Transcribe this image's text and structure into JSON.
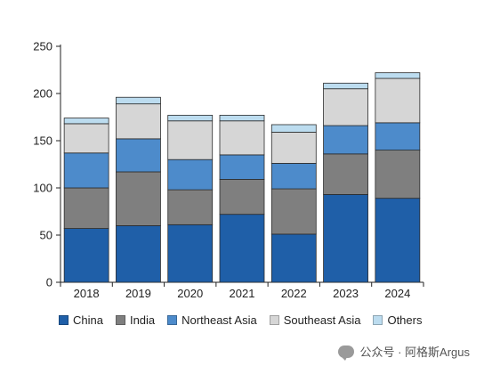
{
  "chart_data": {
    "type": "bar",
    "stacked": true,
    "categories": [
      "2018",
      "2019",
      "2020",
      "2021",
      "2022",
      "2023",
      "2024"
    ],
    "series": [
      {
        "name": "China",
        "color": "#1f5fa8",
        "values": [
          57,
          60,
          61,
          72,
          51,
          93,
          89
        ]
      },
      {
        "name": "India",
        "color": "#7f7f7f",
        "values": [
          43,
          57,
          37,
          37,
          48,
          43,
          51
        ]
      },
      {
        "name": "Northeast Asia",
        "color": "#4d8bcb",
        "values": [
          37,
          35,
          32,
          26,
          27,
          30,
          29
        ]
      },
      {
        "name": "Southeast Asia",
        "color": "#d6d6d6",
        "values": [
          31,
          37,
          41,
          36,
          33,
          39,
          47
        ]
      },
      {
        "name": "Others",
        "color": "#bcdcef",
        "values": [
          6,
          7,
          6,
          6,
          8,
          6,
          6
        ]
      }
    ],
    "ylim": [
      0,
      250
    ],
    "yticks": [
      0,
      50,
      100,
      150,
      200,
      250
    ],
    "grid": false,
    "legend_position": "bottom"
  },
  "watermark": {
    "icon": "chat-bubble-icon",
    "text": "公众号 · 阿格斯Argus"
  }
}
